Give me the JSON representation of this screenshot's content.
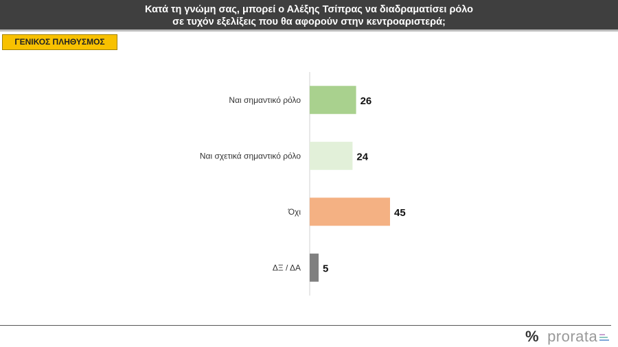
{
  "header": {
    "line1": "Κατά τη γνώμη σας, μπορεί ο Αλέξης Τσίπρας να διαδραματίσει ρόλο",
    "line2": "σε τυχόν εξελίξεις που θα αφορούν στην κεντροαριστερά;"
  },
  "badge": "ΓΕΝΙΚΟΣ ΠΛΗΘΥΣΜΟΣ",
  "footer": {
    "logo_symbol": "%",
    "logo_text": "prorata"
  },
  "chart_data": {
    "type": "bar",
    "orientation": "horizontal",
    "categories": [
      "Ναι σημαντικό ρόλο",
      "Ναι σχετικά σημαντικό ρόλο",
      "Όχι",
      "ΔΞ / ΔΑ"
    ],
    "values": [
      26,
      24,
      45,
      5
    ],
    "colors": [
      "#a9d18e",
      "#e2f0d9",
      "#f4b183",
      "#808080"
    ],
    "grid": false,
    "xlim": [
      0,
      100
    ]
  }
}
